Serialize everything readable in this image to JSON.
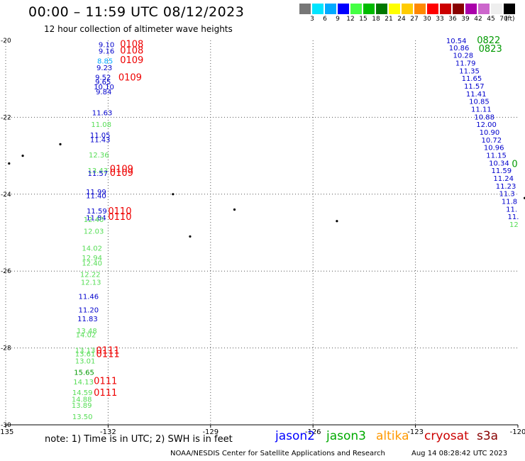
{
  "header": {
    "title": "00:00 – 11:59 UTC 08/12/2023",
    "subtitle": "12 hour collection of altimeter wave heights"
  },
  "color_scale": {
    "colors": [
      "#777777",
      "#00e5ff",
      "#00aaff",
      "#0000ff",
      "#44ff44",
      "#00bb00",
      "#007700",
      "#ffff00",
      "#ffcc00",
      "#ff8800",
      "#ff0000",
      "#cc0000",
      "#880000",
      "#aa00aa",
      "#cc66cc",
      "#eeeeee",
      "#000000"
    ],
    "labels": [
      "3",
      "6",
      "9",
      "12",
      "15",
      "18",
      "21",
      "24",
      "27",
      "30",
      "33",
      "36",
      "39",
      "42",
      "45",
      "70"
    ],
    "unit": "(ft)"
  },
  "footer": {
    "note": "note:  1) Time is in UTC; 2) SWH is in feet",
    "satellites": [
      {
        "name": "jason2",
        "color": "#0000ff"
      },
      {
        "name": "jason3",
        "color": "#00aa00"
      },
      {
        "name": "altika",
        "color": "#ff9900"
      },
      {
        "name": "cryosat",
        "color": "#cc0000"
      },
      {
        "name": "s3a",
        "color": "#880000"
      }
    ],
    "credit": "NOAA/NESDIS Center for Satellite Applications and Research",
    "timestamp": "Aug 14 08:28:42 UTC 2023"
  },
  "chart_data": {
    "type": "scatter",
    "xlim": [
      -135,
      -120
    ],
    "ylim": [
      -30,
      -20
    ],
    "x_ticks": [
      "-135",
      "-132",
      "-129",
      "-126",
      "-123",
      "-120"
    ],
    "y_ticks": [
      "-20",
      "-22",
      "-24",
      "-26",
      "-28",
      "-30"
    ],
    "grid": true,
    "colors": {
      "blue": "#0000cc",
      "green": "#55dd55",
      "darkgreen": "#009900",
      "red": "#ee0000",
      "cyan": "#00aaff"
    },
    "islands": [
      [
        -134.5,
        -23.0
      ],
      [
        -133.4,
        -22.7
      ],
      [
        -134.9,
        -23.2
      ],
      [
        -130.1,
        -24.0
      ],
      [
        -128.3,
        -24.4
      ],
      [
        -129.6,
        -25.1
      ],
      [
        -125.3,
        -24.7
      ],
      [
        -119.8,
        -24.1
      ]
    ],
    "labels": [
      {
        "t": "9.10",
        "x": -132.28,
        "y": -20.1,
        "c": "blue"
      },
      {
        "t": "9.16",
        "x": -132.28,
        "y": -20.27,
        "c": "blue"
      },
      {
        "t": "8.85",
        "x": -132.32,
        "y": -20.53,
        "c": "cyan"
      },
      {
        "t": "9.23",
        "x": -132.34,
        "y": -20.7,
        "c": "blue"
      },
      {
        "t": "9.52",
        "x": -132.38,
        "y": -20.95,
        "c": "blue"
      },
      {
        "t": "9.65",
        "x": -132.38,
        "y": -21.07,
        "c": "blue"
      },
      {
        "t": "10.10",
        "x": -132.42,
        "y": -21.2,
        "c": "blue"
      },
      {
        "t": "9.84",
        "x": -132.36,
        "y": -21.33,
        "c": "blue"
      },
      {
        "t": "11.63",
        "x": -132.47,
        "y": -21.87,
        "c": "blue"
      },
      {
        "t": "11.08",
        "x": -132.5,
        "y": -22.18,
        "c": "green"
      },
      {
        "t": "11.05",
        "x": -132.53,
        "y": -22.45,
        "c": "blue"
      },
      {
        "t": "11.43",
        "x": -132.53,
        "y": -22.57,
        "c": "blue"
      },
      {
        "t": "12.36",
        "x": -132.57,
        "y": -22.97,
        "c": "green"
      },
      {
        "t": "13.43",
        "x": -132.6,
        "y": -23.38,
        "c": "green"
      },
      {
        "t": "11.57",
        "x": -132.6,
        "y": -23.45,
        "c": "blue"
      },
      {
        "t": "11.99",
        "x": -132.65,
        "y": -23.93,
        "c": "blue"
      },
      {
        "t": "11.40",
        "x": -132.65,
        "y": -24.03,
        "c": "blue"
      },
      {
        "t": "11.59",
        "x": -132.63,
        "y": -24.43,
        "c": "blue"
      },
      {
        "t": "11.84",
        "x": -132.65,
        "y": -24.6,
        "c": "blue"
      },
      {
        "t": "12.40",
        "x": -132.72,
        "y": -24.65,
        "c": "green"
      },
      {
        "t": "12.03",
        "x": -132.72,
        "y": -24.95,
        "c": "green"
      },
      {
        "t": "14.02",
        "x": -132.77,
        "y": -25.4,
        "c": "green"
      },
      {
        "t": "12.94",
        "x": -132.77,
        "y": -25.65,
        "c": "green"
      },
      {
        "t": "12.40",
        "x": -132.77,
        "y": -25.78,
        "c": "green"
      },
      {
        "t": "12.22",
        "x": -132.82,
        "y": -26.08,
        "c": "green"
      },
      {
        "t": "12.13",
        "x": -132.8,
        "y": -26.28,
        "c": "green"
      },
      {
        "t": "11.46",
        "x": -132.87,
        "y": -26.65,
        "c": "blue"
      },
      {
        "t": "11.20",
        "x": -132.87,
        "y": -27.0,
        "c": "blue"
      },
      {
        "t": "11.83",
        "x": -132.9,
        "y": -27.23,
        "c": "blue"
      },
      {
        "t": "13.48",
        "x": -132.92,
        "y": -27.55,
        "c": "green"
      },
      {
        "t": "14.02",
        "x": -132.95,
        "y": -27.65,
        "c": "green"
      },
      {
        "t": "13.13",
        "x": -132.97,
        "y": -28.05,
        "c": "green"
      },
      {
        "t": "13.61",
        "x": -132.97,
        "y": -28.15,
        "c": "green"
      },
      {
        "t": "13.01",
        "x": -132.97,
        "y": -28.33,
        "c": "green"
      },
      {
        "t": "15.65",
        "x": -133.0,
        "y": -28.63,
        "c": "darkgreen"
      },
      {
        "t": "14.13",
        "x": -133.02,
        "y": -28.87,
        "c": "green"
      },
      {
        "t": "14.59",
        "x": -133.05,
        "y": -29.15,
        "c": "green"
      },
      {
        "t": "14.88",
        "x": -133.07,
        "y": -29.33,
        "c": "green"
      },
      {
        "t": "13.89",
        "x": -133.07,
        "y": -29.48,
        "c": "green"
      },
      {
        "t": "13.50",
        "x": -133.05,
        "y": -29.78,
        "c": "green"
      },
      {
        "t": "0108",
        "x": -131.65,
        "y": -20.08,
        "c": "red",
        "big": true
      },
      {
        "t": "0108",
        "x": -131.65,
        "y": -20.25,
        "c": "red",
        "big": true
      },
      {
        "t": "0109",
        "x": -131.65,
        "y": -20.5,
        "c": "red",
        "big": true
      },
      {
        "t": "0109",
        "x": -131.7,
        "y": -20.95,
        "c": "red",
        "big": true
      },
      {
        "t": "0109",
        "x": -131.95,
        "y": -23.33,
        "c": "red",
        "big": true
      },
      {
        "t": "0109",
        "x": -131.95,
        "y": -23.43,
        "c": "red",
        "big": true
      },
      {
        "t": "0110",
        "x": -132.0,
        "y": -24.43,
        "c": "red",
        "big": true
      },
      {
        "t": "0110",
        "x": -132.0,
        "y": -24.58,
        "c": "red",
        "big": true
      },
      {
        "t": "0111",
        "x": -132.35,
        "y": -28.05,
        "c": "red",
        "big": true
      },
      {
        "t": "0111",
        "x": -132.35,
        "y": -28.15,
        "c": "red",
        "big": true
      },
      {
        "t": "0111",
        "x": -132.42,
        "y": -28.85,
        "c": "red",
        "big": true
      },
      {
        "t": "0111",
        "x": -132.42,
        "y": -29.15,
        "c": "red",
        "big": true
      },
      {
        "t": "10.54",
        "x": -122.1,
        "y": -20.0,
        "c": "blue"
      },
      {
        "t": "10.86",
        "x": -122.02,
        "y": -20.18,
        "c": "blue"
      },
      {
        "t": "10.28",
        "x": -121.9,
        "y": -20.38,
        "c": "blue"
      },
      {
        "t": "11.79",
        "x": -121.83,
        "y": -20.58,
        "c": "blue"
      },
      {
        "t": "11.35",
        "x": -121.72,
        "y": -20.78,
        "c": "blue"
      },
      {
        "t": "11.65",
        "x": -121.65,
        "y": -20.98,
        "c": "blue"
      },
      {
        "t": "11.57",
        "x": -121.58,
        "y": -21.18,
        "c": "blue"
      },
      {
        "t": "11.41",
        "x": -121.52,
        "y": -21.38,
        "c": "blue"
      },
      {
        "t": "10.85",
        "x": -121.43,
        "y": -21.58,
        "c": "blue"
      },
      {
        "t": "11.11",
        "x": -121.37,
        "y": -21.78,
        "c": "blue"
      },
      {
        "t": "10.88",
        "x": -121.28,
        "y": -21.98,
        "c": "blue"
      },
      {
        "t": "12.00",
        "x": -121.22,
        "y": -22.18,
        "c": "blue"
      },
      {
        "t": "10.90",
        "x": -121.13,
        "y": -22.38,
        "c": "blue"
      },
      {
        "t": "10.72",
        "x": -121.07,
        "y": -22.58,
        "c": "blue"
      },
      {
        "t": "10.96",
        "x": -121.0,
        "y": -22.78,
        "c": "blue"
      },
      {
        "t": "11.15",
        "x": -120.93,
        "y": -22.98,
        "c": "blue"
      },
      {
        "t": "10.34",
        "x": -120.85,
        "y": -23.18,
        "c": "blue"
      },
      {
        "t": "11.59",
        "x": -120.78,
        "y": -23.38,
        "c": "blue"
      },
      {
        "t": "11.24",
        "x": -120.72,
        "y": -23.58,
        "c": "blue"
      },
      {
        "t": "11.23",
        "x": -120.65,
        "y": -23.78,
        "c": "blue"
      },
      {
        "t": "11.3",
        "x": -120.55,
        "y": -23.98,
        "c": "blue"
      },
      {
        "t": "11.8",
        "x": -120.48,
        "y": -24.18,
        "c": "blue"
      },
      {
        "t": "11.",
        "x": -120.35,
        "y": -24.38,
        "c": "blue"
      },
      {
        "t": "11.",
        "x": -120.3,
        "y": -24.58,
        "c": "blue"
      },
      {
        "t": "12",
        "x": -120.25,
        "y": -24.78,
        "c": "green"
      },
      {
        "t": "0822",
        "x": -121.2,
        "y": -19.98,
        "c": "darkgreen",
        "big": true
      },
      {
        "t": "0823",
        "x": -121.15,
        "y": -20.2,
        "c": "darkgreen",
        "big": true
      },
      {
        "t": "0",
        "x": -120.18,
        "y": -23.2,
        "c": "darkgreen",
        "big": true
      }
    ]
  }
}
